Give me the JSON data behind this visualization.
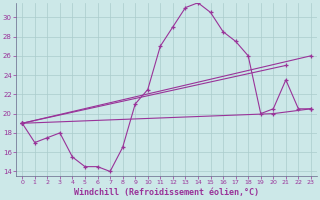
{
  "title": "",
  "xlabel": "Windchill (Refroidissement éolien,°C)",
  "ylabel": "",
  "bg_color": "#cce8e8",
  "grid_color": "#aacccc",
  "line_color": "#993399",
  "xlim": [
    -0.5,
    23.5
  ],
  "ylim": [
    13.5,
    31.5
  ],
  "yticks": [
    14,
    16,
    18,
    20,
    22,
    24,
    26,
    28,
    30
  ],
  "xticks": [
    0,
    1,
    2,
    3,
    4,
    5,
    6,
    7,
    8,
    9,
    10,
    11,
    12,
    13,
    14,
    15,
    16,
    17,
    18,
    19,
    20,
    21,
    22,
    23
  ],
  "line1_x": [
    0,
    1,
    2,
    3,
    4,
    5,
    6,
    7,
    8,
    9,
    10,
    11,
    12,
    13,
    14,
    15,
    16,
    17,
    18,
    19,
    20,
    21,
    22,
    23
  ],
  "line1_y": [
    19.0,
    17.0,
    17.5,
    18.0,
    15.5,
    14.5,
    14.5,
    14.0,
    16.5,
    21.0,
    22.5,
    27.0,
    29.0,
    31.0,
    31.5,
    30.5,
    28.5,
    27.5,
    26.0,
    20.0,
    20.5,
    23.5,
    20.5,
    20.5
  ],
  "line2_x": [
    0,
    23
  ],
  "line2_y": [
    19.0,
    26.0
  ],
  "line3_x": [
    0,
    20,
    23
  ],
  "line3_y": [
    19.0,
    20.0,
    20.5
  ],
  "line4_x": [
    0,
    21
  ],
  "line4_y": [
    19.0,
    25.0
  ]
}
